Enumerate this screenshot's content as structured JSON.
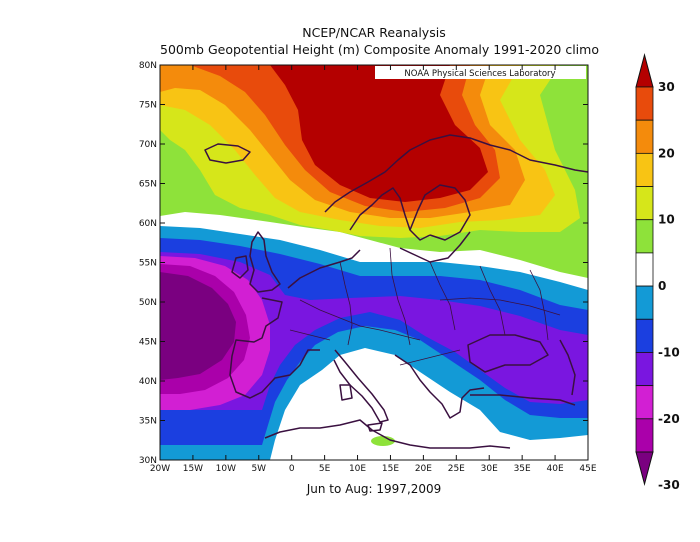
{
  "titles": {
    "line1": "NCEP/NCAR Reanalysis",
    "line2": "500mb Geopotential Height (m) Composite Anomaly 1991-2020 climo",
    "footer": "Jun to Aug: 1997,2009",
    "credit": "NOAA Physical Sciences Laboratory"
  },
  "map": {
    "lon_range": [
      -20,
      45
    ],
    "lat_range": [
      30,
      80
    ],
    "x_ticks": [
      "20W",
      "15W",
      "10W",
      "5W",
      "0",
      "5E",
      "10E",
      "15E",
      "20E",
      "25E",
      "30E",
      "35E",
      "40E",
      "45E"
    ],
    "y_ticks": [
      "30N",
      "35N",
      "40N",
      "45N",
      "50N",
      "55N",
      "60N",
      "65N",
      "70N",
      "75N",
      "80N"
    ]
  },
  "colorbar": {
    "tick_labels": [
      "30",
      "20",
      "10",
      "0",
      "-10",
      "-20",
      "-30"
    ],
    "levels": [
      -30,
      -25,
      -20,
      -15,
      -10,
      -5,
      5,
      10,
      15,
      20,
      25,
      30
    ],
    "colors": {
      "lt_m30": "#7a0080",
      "m30_m25": "#aa00aa",
      "m25_m20": "#d21fd3",
      "m20_m15": "#7a16e0",
      "m15_m10": "#1b3fe0",
      "m10_m5": "#139ad6",
      "m5_p5": "#ffffff",
      "p5_p10": "#8ee23a",
      "p10_p15": "#d6e61a",
      "p15_p20": "#f8c414",
      "p20_p25": "#f48b0c",
      "p25_p30": "#e84b0c",
      "gt_p30": "#b40000"
    }
  }
}
